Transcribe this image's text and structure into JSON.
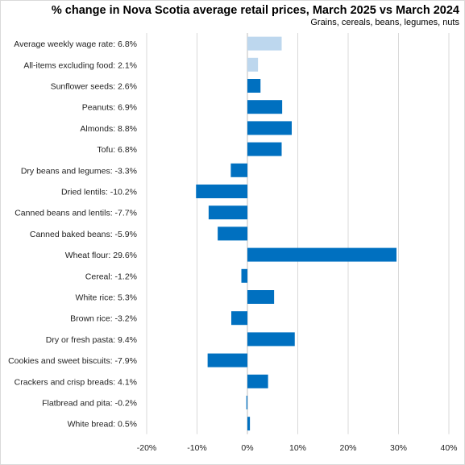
{
  "chart_data": {
    "type": "bar",
    "orientation": "horizontal",
    "title": "% change in Nova Scotia average retail prices, March 2025 vs March 2024",
    "subtitle": "Grains, cereals, beans, legumes, nuts",
    "categories": [
      "Average weekly wage rate: 6.8%",
      "All-items excluding food: 2.1%",
      "Sunflower seeds: 2.6%",
      "Peanuts: 6.9%",
      "Almonds: 8.8%",
      "Tofu: 6.8%",
      "Dry beans and legumes: -3.3%",
      "Dried lentils: -10.2%",
      "Canned beans and lentils: -7.7%",
      "Canned baked beans: -5.9%",
      "Wheat flour: 29.6%",
      "Cereal: -1.2%",
      "White rice: 5.3%",
      "Brown rice: -3.2%",
      "Dry or fresh pasta: 9.4%",
      "Cookies and sweet biscuits: -7.9%",
      "Crackers and crisp breads: 4.1%",
      "Flatbread and pita: -0.2%",
      "White bread: 0.5%"
    ],
    "values": [
      6.8,
      2.1,
      2.6,
      6.9,
      8.8,
      6.8,
      -3.3,
      -10.2,
      -7.7,
      -5.9,
      29.6,
      -1.2,
      5.3,
      -3.2,
      9.4,
      -7.9,
      4.1,
      -0.2,
      0.5
    ],
    "highlight_count": 2,
    "xlim": [
      -20,
      40
    ],
    "xticks": [
      -20,
      -10,
      0,
      10,
      20,
      30,
      40
    ],
    "xtick_labels": [
      "-20%",
      "-10%",
      "0%",
      "10%",
      "20%",
      "30%",
      "40%"
    ],
    "xlabel": "",
    "ylabel": "",
    "grid": true,
    "legend": "none",
    "colors": {
      "bar": "#0070C0",
      "highlight_bar": "#BDD7EE",
      "grid": "#d9d9d9",
      "zero_line": "#bfbfbf"
    }
  }
}
